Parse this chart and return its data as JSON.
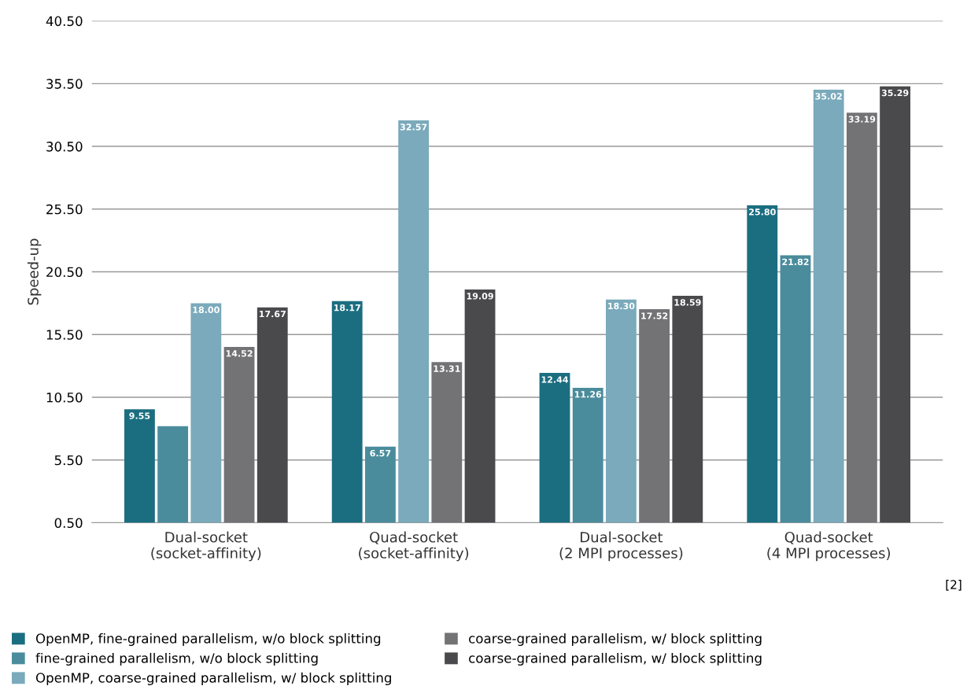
{
  "chart_data": {
    "type": "bar",
    "ylabel": "Speed-up",
    "categories": [
      "Dual-socket\n(socket-affinity)",
      "Quad-socket\n(socket-affinity)",
      "Dual-socket\n(2 MPI processes)",
      "Quad-socket\n(4 MPI processes)"
    ],
    "series": [
      {
        "name": "OpenMP, fine-grained parallelism, w/o block splitting",
        "color": "#1b6e80",
        "values": [
          9.55,
          18.17,
          12.44,
          25.8
        ],
        "value_labels": [
          "9.55",
          "18.17",
          "12.44",
          "25.80"
        ]
      },
      {
        "name": "fine-grained parallelism, w/o block splitting",
        "color": "#4a8c9c",
        "values": [
          8.2,
          6.57,
          11.26,
          21.82
        ],
        "value_labels": [
          null,
          "6.57",
          "11.26",
          "21.82"
        ]
      },
      {
        "name": "OpenMP, coarse-grained parallelism, w/ block splitting",
        "color": "#7aaabb",
        "values": [
          18.0,
          32.57,
          18.3,
          35.02
        ],
        "value_labels": [
          "18.00",
          "32.57",
          "18.30",
          "35.02"
        ]
      },
      {
        "name": "coarse-grained parallelism, w/ block splitting",
        "color": "#737376",
        "values": [
          14.52,
          13.31,
          17.52,
          33.19
        ],
        "value_labels": [
          "14.52",
          "13.31",
          "17.52",
          "33.19"
        ]
      },
      {
        "name": "coarse-grained parallelism, w/ block splitting",
        "color": "#4a4a4c",
        "values": [
          17.67,
          19.09,
          18.59,
          35.29
        ],
        "value_labels": [
          "17.67",
          "19.09",
          "18.59",
          "35.29"
        ]
      }
    ],
    "ylim": [
      0.5,
      40.5
    ],
    "yticks": [
      {
        "value": 0.5,
        "label": "0.50"
      },
      {
        "value": 5.5,
        "label": "5.50"
      },
      {
        "value": 10.5,
        "label": "10.50"
      },
      {
        "value": 15.5,
        "label": "15.50"
      },
      {
        "value": 20.5,
        "label": "20.50"
      },
      {
        "value": 25.5,
        "label": "25.50"
      },
      {
        "value": 30.5,
        "label": "30.50"
      },
      {
        "value": 35.5,
        "label": "35.50"
      },
      {
        "value": 40.5,
        "label": "40.50"
      }
    ],
    "grid": "y",
    "legend": "bottom",
    "annotations": [
      "[2]"
    ]
  }
}
